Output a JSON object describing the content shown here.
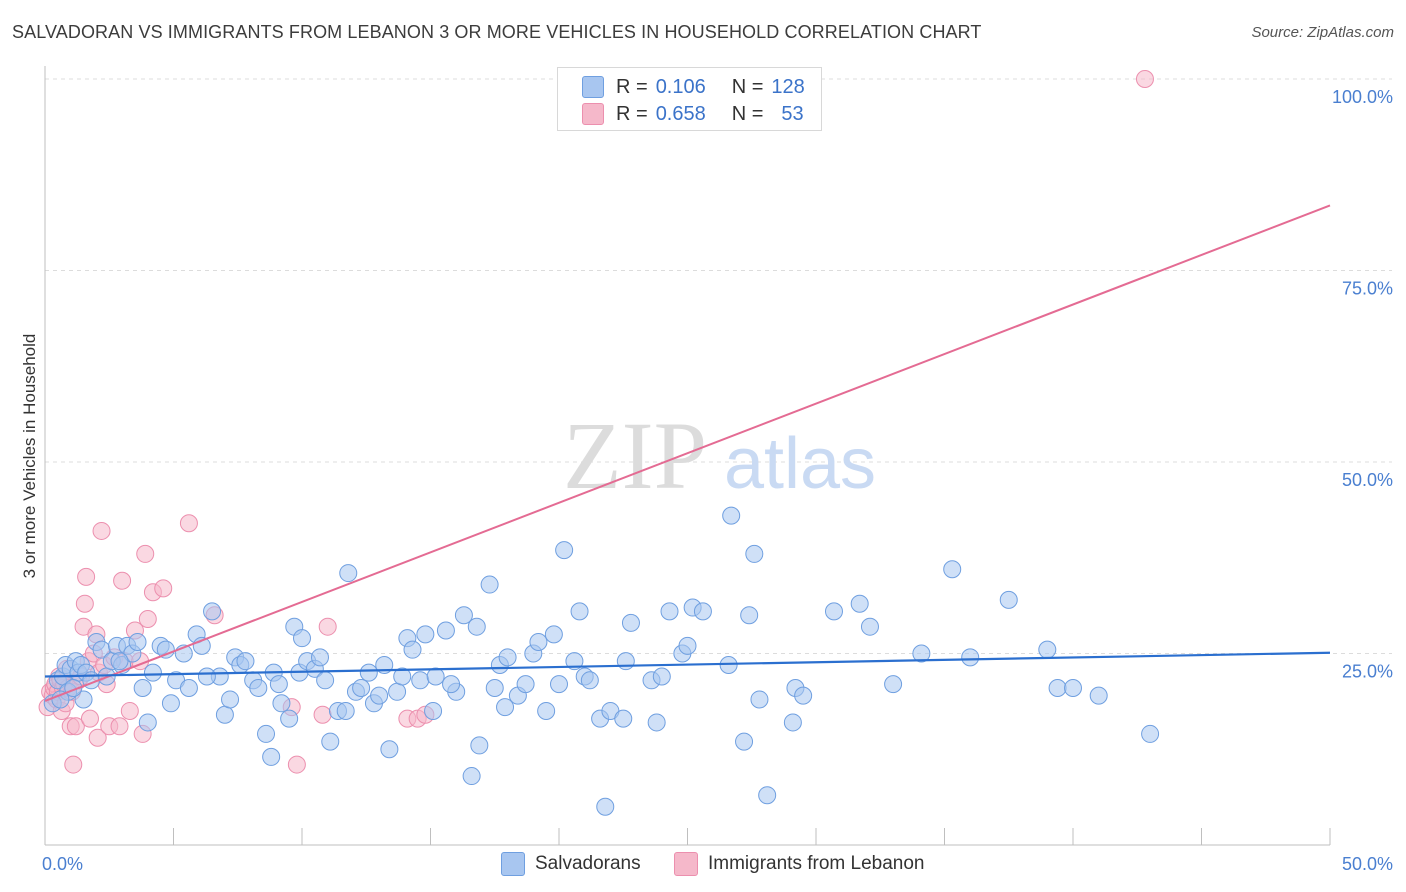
{
  "title": "SALVADORAN VS IMMIGRANTS FROM LEBANON 3 OR MORE VEHICLES IN HOUSEHOLD CORRELATION CHART",
  "source": "Source: ZipAtlas.com",
  "watermark": {
    "zip": "ZIP",
    "atlas": "atlas"
  },
  "legend": {
    "rows": [
      {
        "r_label": "R =",
        "r_value": "0.106",
        "n_label": "N =",
        "n_value": "128"
      },
      {
        "r_label": "R =",
        "r_value": "0.658",
        "n_label": "N =",
        "n_value": "53"
      }
    ]
  },
  "bottom_legend": {
    "series1": "Salvadorans",
    "series2": "Immigrants from Lebanon"
  },
  "colors": {
    "salvadoran_fill": "#a8c6f0",
    "salvadoran_stroke": "#6f9fe0",
    "salvadoran_line": "#2b6fcf",
    "lebanon_fill": "#f5b8ca",
    "lebanon_stroke": "#ec8fae",
    "lebanon_line": "#e46b93",
    "axis_text": "#4a7fd0",
    "grid": "#dcdcdc"
  },
  "chart_data": {
    "type": "scatter",
    "xlabel": "",
    "ylabel": "3 or more Vehicles in Household",
    "xlim": [
      0,
      50
    ],
    "ylim": [
      0,
      100
    ],
    "x_tick_labels": [
      "0.0%",
      "50.0%"
    ],
    "y_tick_labels": [
      "25.0%",
      "50.0%",
      "75.0%",
      "100.0%"
    ],
    "y_ticks": [
      25,
      50,
      75,
      100
    ],
    "grid": true,
    "legend_position": "top-center",
    "series": [
      {
        "name": "Salvadorans",
        "trend": {
          "x": [
            0,
            50
          ],
          "y": [
            22.0,
            25.1
          ]
        },
        "points": [
          [
            0.3,
            18.5
          ],
          [
            0.5,
            21.5
          ],
          [
            0.7,
            22.0
          ],
          [
            0.8,
            23.5
          ],
          [
            0.9,
            20.0
          ],
          [
            1.0,
            23.0
          ],
          [
            1.2,
            24.0
          ],
          [
            1.3,
            22.5
          ],
          [
            1.4,
            23.5
          ],
          [
            1.5,
            19.0
          ],
          [
            1.6,
            22.5
          ],
          [
            1.8,
            21.5
          ],
          [
            2.0,
            26.5
          ],
          [
            2.2,
            25.5
          ],
          [
            2.4,
            22.0
          ],
          [
            2.6,
            24.0
          ],
          [
            2.8,
            26.0
          ],
          [
            3.0,
            23.5
          ],
          [
            3.2,
            26.0
          ],
          [
            3.4,
            25.0
          ],
          [
            3.6,
            26.5
          ],
          [
            3.8,
            20.5
          ],
          [
            4.0,
            16.0
          ],
          [
            4.2,
            22.5
          ],
          [
            4.5,
            26.0
          ],
          [
            4.7,
            25.5
          ],
          [
            4.9,
            18.5
          ],
          [
            5.1,
            21.5
          ],
          [
            5.4,
            25.0
          ],
          [
            5.6,
            20.5
          ],
          [
            5.9,
            27.5
          ],
          [
            6.1,
            26.0
          ],
          [
            6.5,
            30.5
          ],
          [
            6.8,
            22.0
          ],
          [
            7.0,
            17.0
          ],
          [
            7.2,
            19.0
          ],
          [
            7.4,
            24.5
          ],
          [
            7.6,
            23.5
          ],
          [
            7.8,
            24.0
          ],
          [
            8.1,
            21.5
          ],
          [
            8.3,
            20.5
          ],
          [
            8.6,
            14.5
          ],
          [
            8.8,
            11.5
          ],
          [
            8.9,
            22.5
          ],
          [
            9.2,
            18.5
          ],
          [
            9.5,
            16.5
          ],
          [
            9.7,
            28.5
          ],
          [
            9.9,
            22.5
          ],
          [
            10.0,
            27.0
          ],
          [
            10.2,
            24.0
          ],
          [
            10.5,
            23.0
          ],
          [
            10.7,
            24.5
          ],
          [
            10.9,
            21.5
          ],
          [
            11.1,
            13.5
          ],
          [
            11.4,
            17.5
          ],
          [
            11.7,
            17.5
          ],
          [
            11.8,
            35.5
          ],
          [
            12.1,
            20.0
          ],
          [
            12.3,
            20.5
          ],
          [
            12.6,
            22.5
          ],
          [
            12.8,
            18.5
          ],
          [
            13.0,
            19.5
          ],
          [
            13.2,
            23.5
          ],
          [
            13.4,
            12.5
          ],
          [
            13.7,
            20.0
          ],
          [
            13.9,
            22.0
          ],
          [
            14.1,
            27.0
          ],
          [
            14.3,
            25.5
          ],
          [
            14.6,
            21.5
          ],
          [
            14.8,
            27.5
          ],
          [
            15.1,
            17.5
          ],
          [
            15.2,
            22.0
          ],
          [
            15.6,
            28.0
          ],
          [
            16.0,
            20.0
          ],
          [
            16.3,
            30.0
          ],
          [
            16.6,
            9.0
          ],
          [
            16.8,
            28.5
          ],
          [
            16.9,
            13.0
          ],
          [
            17.3,
            34.0
          ],
          [
            17.5,
            20.5
          ],
          [
            17.7,
            23.5
          ],
          [
            17.9,
            18.0
          ],
          [
            18.4,
            19.5
          ],
          [
            18.7,
            21.0
          ],
          [
            19.0,
            25.0
          ],
          [
            19.2,
            26.5
          ],
          [
            19.5,
            17.5
          ],
          [
            19.8,
            27.5
          ],
          [
            20.0,
            21.0
          ],
          [
            20.2,
            38.5
          ],
          [
            20.6,
            24.0
          ],
          [
            20.8,
            30.5
          ],
          [
            21.0,
            22.0
          ],
          [
            21.2,
            21.5
          ],
          [
            21.6,
            16.5
          ],
          [
            21.8,
            5.0
          ],
          [
            22.0,
            17.5
          ],
          [
            22.5,
            16.5
          ],
          [
            22.6,
            24.0
          ],
          [
            22.8,
            29.0
          ],
          [
            23.6,
            21.5
          ],
          [
            23.8,
            16.0
          ],
          [
            24.3,
            30.5
          ],
          [
            24.8,
            25.0
          ],
          [
            25.0,
            26.0
          ],
          [
            25.2,
            31.0
          ],
          [
            25.6,
            30.5
          ],
          [
            26.6,
            23.5
          ],
          [
            26.7,
            43.0
          ],
          [
            27.2,
            13.5
          ],
          [
            27.4,
            30.0
          ],
          [
            27.6,
            38.0
          ],
          [
            27.8,
            19.0
          ],
          [
            28.1,
            6.5
          ],
          [
            29.1,
            16.0
          ],
          [
            29.2,
            20.5
          ],
          [
            29.5,
            19.5
          ],
          [
            30.7,
            30.5
          ],
          [
            31.7,
            31.5
          ],
          [
            32.1,
            28.5
          ],
          [
            33.0,
            21.0
          ],
          [
            34.1,
            25.0
          ],
          [
            35.3,
            36.0
          ],
          [
            36.0,
            24.5
          ],
          [
            37.5,
            32.0
          ],
          [
            39.0,
            25.5
          ],
          [
            39.4,
            20.5
          ],
          [
            40.0,
            20.5
          ],
          [
            41.0,
            19.5
          ],
          [
            43.0,
            14.5
          ],
          [
            0.6,
            19.0
          ],
          [
            1.1,
            20.5
          ],
          [
            2.9,
            24.0
          ],
          [
            6.3,
            22.0
          ],
          [
            9.1,
            21.0
          ],
          [
            15.8,
            21.0
          ],
          [
            18.0,
            24.5
          ],
          [
            24.0,
            22.0
          ]
        ]
      },
      {
        "name": "Immigrants from Lebanon",
        "trend": {
          "x": [
            0,
            50
          ],
          "y": [
            18.8,
            83.5
          ]
        },
        "points": [
          [
            0.1,
            18.0
          ],
          [
            0.2,
            20.0
          ],
          [
            0.3,
            19.5
          ],
          [
            0.35,
            20.5
          ],
          [
            0.4,
            21.0
          ],
          [
            0.45,
            19.0
          ],
          [
            0.5,
            20.0
          ],
          [
            0.55,
            22.0
          ],
          [
            0.6,
            21.5
          ],
          [
            0.65,
            17.5
          ],
          [
            0.7,
            20.5
          ],
          [
            0.75,
            21.0
          ],
          [
            0.8,
            18.5
          ],
          [
            0.85,
            23.0
          ],
          [
            0.9,
            20.5
          ],
          [
            1.0,
            15.5
          ],
          [
            1.05,
            20.0
          ],
          [
            1.1,
            10.5
          ],
          [
            1.2,
            15.5
          ],
          [
            1.3,
            21.5
          ],
          [
            1.4,
            22.0
          ],
          [
            1.5,
            28.5
          ],
          [
            1.55,
            31.5
          ],
          [
            1.6,
            35.0
          ],
          [
            1.7,
            24.0
          ],
          [
            1.75,
            16.5
          ],
          [
            1.9,
            25.0
          ],
          [
            2.0,
            27.5
          ],
          [
            2.05,
            14.0
          ],
          [
            2.1,
            22.5
          ],
          [
            2.2,
            41.0
          ],
          [
            2.3,
            23.5
          ],
          [
            2.4,
            21.0
          ],
          [
            2.5,
            15.5
          ],
          [
            2.7,
            24.5
          ],
          [
            2.9,
            15.5
          ],
          [
            3.0,
            34.5
          ],
          [
            3.1,
            24.0
          ],
          [
            3.3,
            17.5
          ],
          [
            3.5,
            28.0
          ],
          [
            3.7,
            24.0
          ],
          [
            3.8,
            14.5
          ],
          [
            3.9,
            38.0
          ],
          [
            4.0,
            29.5
          ],
          [
            4.2,
            33.0
          ],
          [
            4.6,
            33.5
          ],
          [
            5.6,
            42.0
          ],
          [
            6.6,
            30.0
          ],
          [
            9.6,
            18.0
          ],
          [
            9.8,
            10.5
          ],
          [
            10.8,
            17.0
          ],
          [
            11.0,
            28.5
          ],
          [
            14.1,
            16.5
          ],
          [
            14.5,
            16.5
          ],
          [
            14.8,
            17.0
          ],
          [
            42.8,
            100.0
          ]
        ]
      }
    ]
  }
}
